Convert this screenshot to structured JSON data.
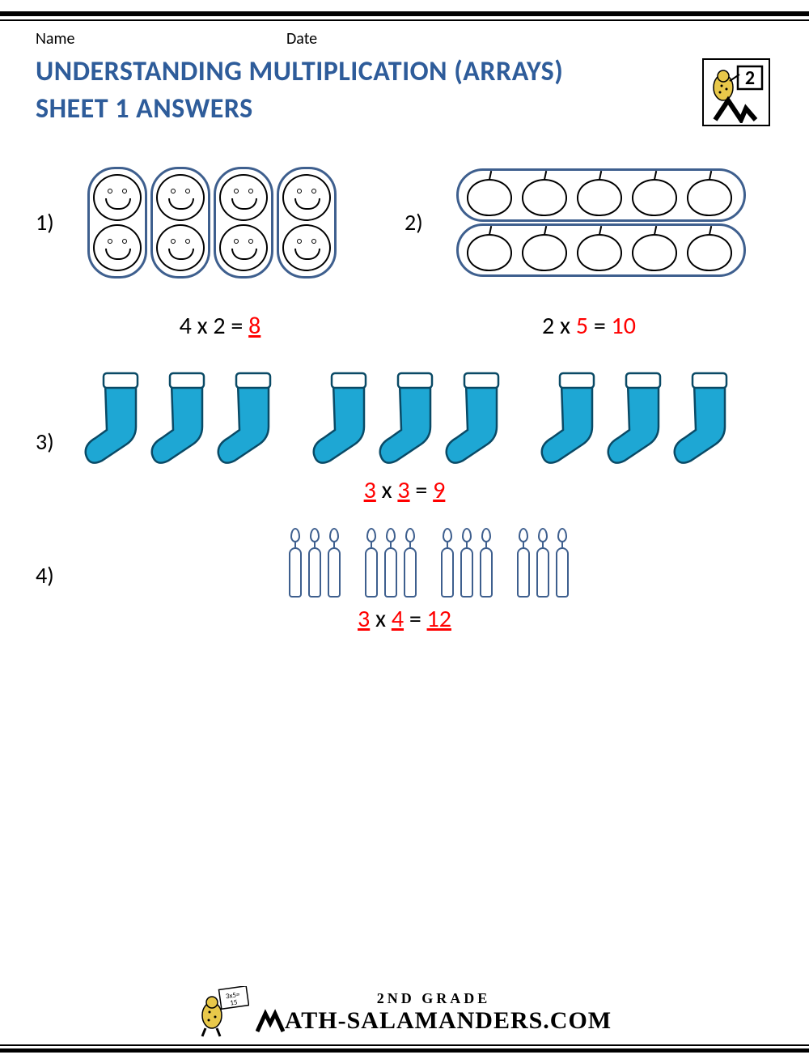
{
  "header": {
    "name_label": "Name",
    "date_label": "Date",
    "grade_badge": "2"
  },
  "title_line1": "UNDERSTANDING MULTIPLICATION (ARRAYS)",
  "title_line2": "SHEET 1 ANSWERS",
  "colors": {
    "title": "#2e5c9a",
    "outline": "#3e5f8e",
    "answer": "#ff0000",
    "sock_fill": "#1ea7d4",
    "sock_cuff": "#ffffff",
    "text": "#000000"
  },
  "problems": [
    {
      "num": "1)",
      "type": "faces",
      "groups": 4,
      "per_group": 2,
      "eq": {
        "a": "4",
        "op": "x",
        "b": "2",
        "eq": "=",
        "ans": "8",
        "a_red": false,
        "b_red": false,
        "ans_red": true,
        "ans_underline": true
      }
    },
    {
      "num": "2)",
      "type": "apples",
      "groups": 2,
      "per_group": 5,
      "eq": {
        "a": "2",
        "op": "x",
        "b": "5",
        "eq": "=",
        "ans": "10",
        "a_red": false,
        "b_red": true,
        "ans_red": true,
        "ans_underline": false
      }
    },
    {
      "num": "3)",
      "type": "socks",
      "groups": 3,
      "per_group": 3,
      "eq": {
        "a": "3",
        "op": "x",
        "b": "3",
        "eq": "=",
        "ans": "9",
        "a_red": true,
        "a_underline": true,
        "b_red": true,
        "b_underline": true,
        "ans_red": true,
        "ans_underline": true
      }
    },
    {
      "num": "4)",
      "type": "candles",
      "groups": 4,
      "per_group": 3,
      "eq": {
        "a": "3",
        "op": "x",
        "b": "4",
        "eq": "=",
        "ans": "12",
        "a_red": true,
        "a_underline": true,
        "b_red": true,
        "b_underline": true,
        "ans_red": true,
        "ans_underline": true
      }
    }
  ],
  "footer": {
    "grade_text": "2ND GRADE",
    "site_text": "ATH-SALAMANDERS.COM",
    "mascot_formula": "3x5=15"
  }
}
